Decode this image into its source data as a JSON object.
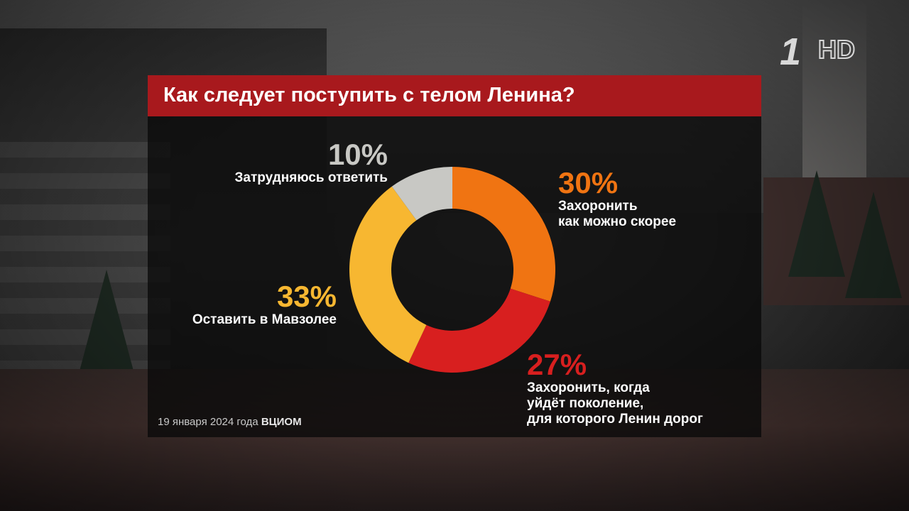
{
  "logo": {
    "channel": "1",
    "quality": "HD"
  },
  "title": "Как следует поступить с телом Ленина?",
  "footer": {
    "date": "19 января 2024 года",
    "source": "ВЦИОМ"
  },
  "chart_data": {
    "type": "pie",
    "title": "Как следует поступить с телом Ленина?",
    "series": [
      {
        "name": "Захоронить как можно скорее",
        "value": 30,
        "label": "30%",
        "desc_lines": [
          "Захоронить",
          "как можно скорее"
        ],
        "color": "#f07412"
      },
      {
        "name": "Захоронить, когда уйдёт поколение, для которого Ленин дорог",
        "value": 27,
        "label": "27%",
        "desc_lines": [
          "Захоронить, когда",
          "уйдёт поколение,",
          "для которого Ленин дорог"
        ],
        "color": "#d81f1f"
      },
      {
        "name": "Оставить в Мавзолее",
        "value": 33,
        "label": "33%",
        "desc_lines": [
          "Оставить в Мавзолее"
        ],
        "color": "#f7b731"
      },
      {
        "name": "Затрудняюсь ответить",
        "value": 10,
        "label": "10%",
        "desc_lines": [
          "Затрудняюсь ответить"
        ],
        "color": "#c8c8c4"
      }
    ]
  }
}
